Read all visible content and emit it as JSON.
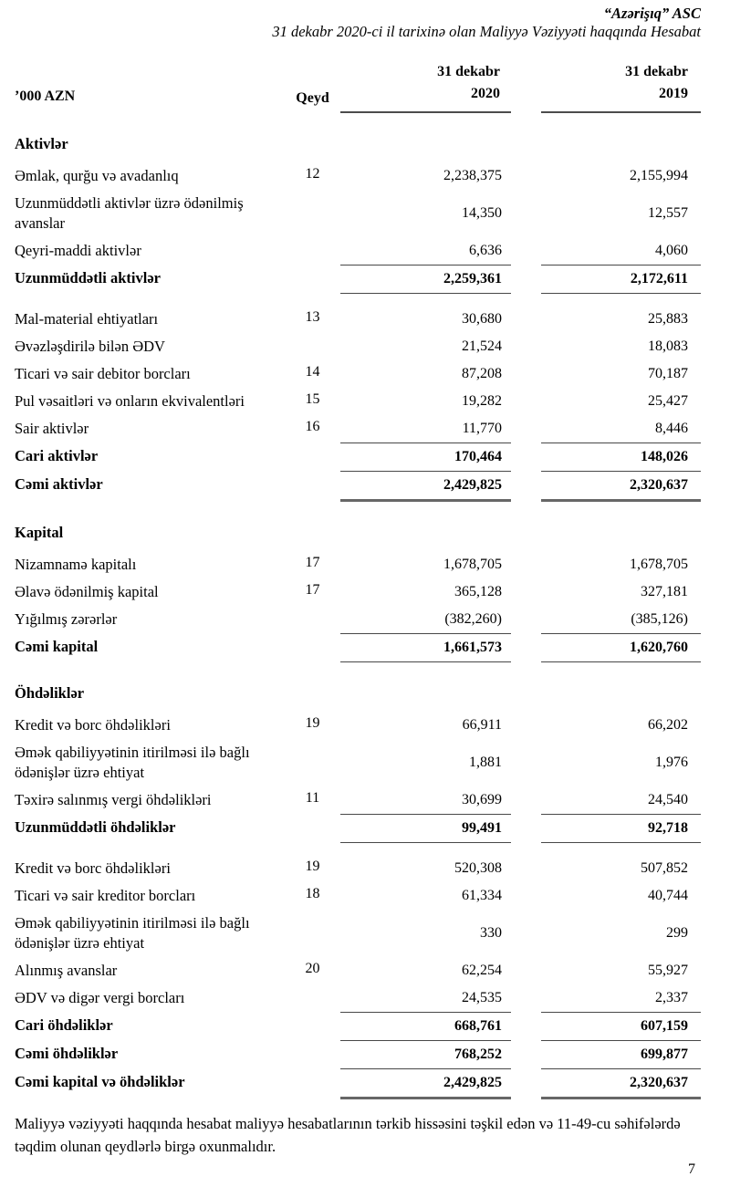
{
  "header": {
    "company": "“Azərişıq” ASC",
    "subtitle": "31 dekabr 2020-ci il tarixinə olan Maliyyə Vəziyyəti haqqında Hesabat"
  },
  "table": {
    "col_unit": "’000 AZN",
    "col_note": "Qeyd",
    "col_2020_line1": "31 dekabr",
    "col_2020_line2": "2020",
    "col_2019_line1": "31 dekabr",
    "col_2019_line2": "2019",
    "rows": [
      {
        "type": "section",
        "label": "Aktivlər"
      },
      {
        "type": "item",
        "label": "Əmlak, qurğu və avadanlıq",
        "note": "12",
        "v2020": "2,238,375",
        "v2019": "2,155,994"
      },
      {
        "type": "item",
        "label": "Uzunmüddətli aktivlər üzrə ödənilmiş avanslar",
        "note": "",
        "v2020": "14,350",
        "v2019": "12,557"
      },
      {
        "type": "item",
        "label": "Qeyri-maddi aktivlər",
        "note": "",
        "v2020": "6,636",
        "v2019": "4,060"
      },
      {
        "type": "total",
        "label": "Uzunmüddətli aktivlər",
        "note": "",
        "v2020": "2,259,361",
        "v2019": "2,172,611",
        "lines": "top bottom"
      },
      {
        "type": "item",
        "label": "Mal-material ehtiyatları",
        "note": "13",
        "v2020": "30,680",
        "v2019": "25,883",
        "gap": true
      },
      {
        "type": "item",
        "label": "Əvəzləşdirilə bilən ƏDV",
        "note": "",
        "v2020": "21,524",
        "v2019": "18,083"
      },
      {
        "type": "item",
        "label": "Ticari və sair debitor borcları",
        "note": "14",
        "v2020": "87,208",
        "v2019": "70,187"
      },
      {
        "type": "item",
        "label": "Pul vəsaitləri və onların ekvivalentləri",
        "note": "15",
        "v2020": "19,282",
        "v2019": "25,427"
      },
      {
        "type": "item",
        "label": "Sair aktivlər",
        "note": "16",
        "v2020": "11,770",
        "v2019": "8,446"
      },
      {
        "type": "total",
        "label": "Cari aktivlər",
        "note": "",
        "v2020": "170,464",
        "v2019": "148,026",
        "lines": "top"
      },
      {
        "type": "total",
        "label": "Cəmi aktivlər",
        "note": "",
        "v2020": "2,429,825",
        "v2019": "2,320,637",
        "lines": "top thick"
      },
      {
        "type": "section",
        "label": "Kapital"
      },
      {
        "type": "item",
        "label": "Nizamnamə kapitalı",
        "note": "17",
        "v2020": "1,678,705",
        "v2019": "1,678,705"
      },
      {
        "type": "item",
        "label": "Əlavə ödənilmiş kapital",
        "note": "17",
        "v2020": "365,128",
        "v2019": "327,181"
      },
      {
        "type": "item",
        "label": "Yığılmış zərərlər",
        "note": "",
        "v2020": "(382,260)",
        "v2019": "(385,126)"
      },
      {
        "type": "total",
        "label": "Cəmi kapital",
        "note": "",
        "v2020": "1,661,573",
        "v2019": "1,620,760",
        "lines": "top bottom"
      },
      {
        "type": "section",
        "label": "Öhdəliklər"
      },
      {
        "type": "item",
        "label": "Kredit və borc öhdəlikləri",
        "note": "19",
        "v2020": "66,911",
        "v2019": "66,202"
      },
      {
        "type": "item",
        "label": "Əmək qabiliyyətinin itirilməsi ilə bağlı ödənişlər üzrə ehtiyat",
        "note": "",
        "v2020": "1,881",
        "v2019": "1,976"
      },
      {
        "type": "item",
        "label": "Təxirə salınmış vergi öhdəlikləri",
        "note": "11",
        "v2020": "30,699",
        "v2019": "24,540"
      },
      {
        "type": "total",
        "label": "Uzunmüddətli öhdəliklər",
        "note": "",
        "v2020": "99,491",
        "v2019": "92,718",
        "lines": "top bottom"
      },
      {
        "type": "item",
        "label": "Kredit və borc öhdəlikləri",
        "note": "19",
        "v2020": "520,308",
        "v2019": "507,852",
        "gap": true
      },
      {
        "type": "item",
        "label": "Ticari və sair kreditor borcları",
        "note": "18",
        "v2020": "61,334",
        "v2019": "40,744"
      },
      {
        "type": "item",
        "label": "Əmək qabiliyyətinin itirilməsi ilə bağlı ödənişlər üzrə ehtiyat",
        "note": "",
        "v2020": "330",
        "v2019": "299"
      },
      {
        "type": "item",
        "label": "Alınmış avanslar",
        "note": "20",
        "v2020": "62,254",
        "v2019": "55,927"
      },
      {
        "type": "item",
        "label": "ƏDV və digər vergi borcları",
        "note": "",
        "v2020": "24,535",
        "v2019": "2,337"
      },
      {
        "type": "total",
        "label": "Cari öhdəliklər",
        "note": "",
        "v2020": "668,761",
        "v2019": "607,159",
        "lines": "top"
      },
      {
        "type": "total",
        "label": "Cəmi öhdəliklər",
        "note": "",
        "v2020": "768,252",
        "v2019": "699,877",
        "lines": "top"
      },
      {
        "type": "total",
        "label": "Cəmi kapital və öhdəliklər",
        "note": "",
        "v2020": "2,429,825",
        "v2019": "2,320,637",
        "lines": "top thick"
      }
    ]
  },
  "footer": {
    "note": "Maliyyə vəziyyəti haqqında hesabat maliyyə hesabatlarının tərkib hissəsini təşkil edən və 11-49-cu səhifələrdə təqdim olunan qeydlərlə birgə oxunmalıdır.",
    "page_number": "7"
  }
}
